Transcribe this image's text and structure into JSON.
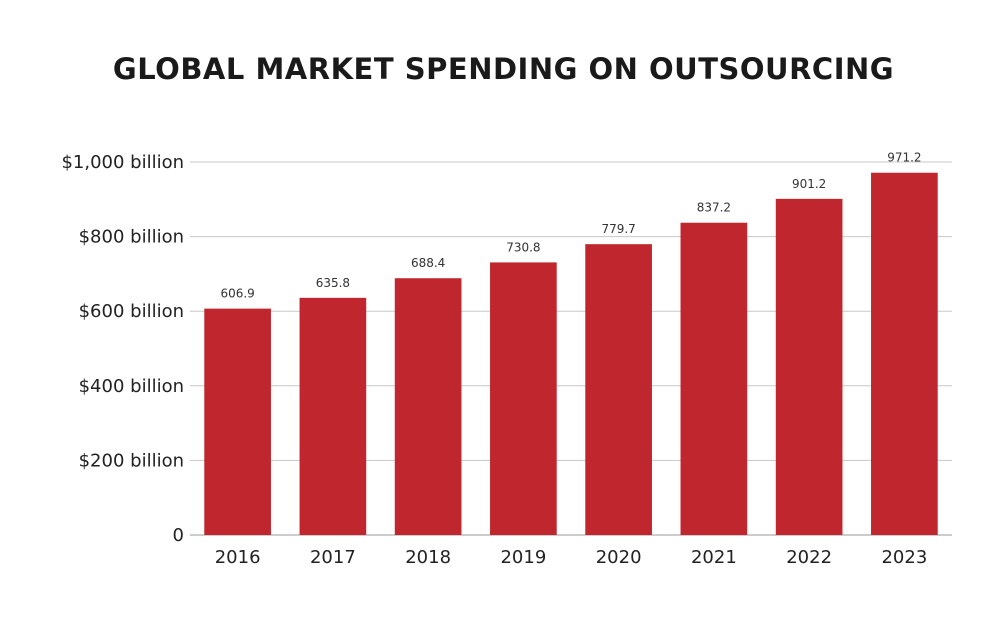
{
  "title": "GLOBAL MARKET SPENDING ON OUTSOURCING",
  "chart_data": {
    "type": "bar",
    "title": "GLOBAL MARKET SPENDING ON OUTSOURCING",
    "xlabel": "",
    "ylabel": "",
    "categories": [
      "2016",
      "2017",
      "2018",
      "2019",
      "2020",
      "2021",
      "2022",
      "2023"
    ],
    "values": [
      606.9,
      635.8,
      688.4,
      730.8,
      779.7,
      837.2,
      901.2,
      971.2
    ],
    "data_labels": [
      "606.9",
      "635.8",
      "688.4",
      "730.8",
      "779.7",
      "837.2",
      "901.2",
      "971.2"
    ],
    "ylim": [
      0,
      1000
    ],
    "yticks": [
      {
        "value": 0,
        "label": "0"
      },
      {
        "value": 200,
        "label": "$200 billion"
      },
      {
        "value": 400,
        "label": "$400 billion"
      },
      {
        "value": 600,
        "label": "$600 billion"
      },
      {
        "value": 800,
        "label": "$800 billion"
      },
      {
        "value": 1000,
        "label": "$1,000 billion"
      }
    ],
    "grid": true,
    "bar_color": "#c0262d"
  }
}
